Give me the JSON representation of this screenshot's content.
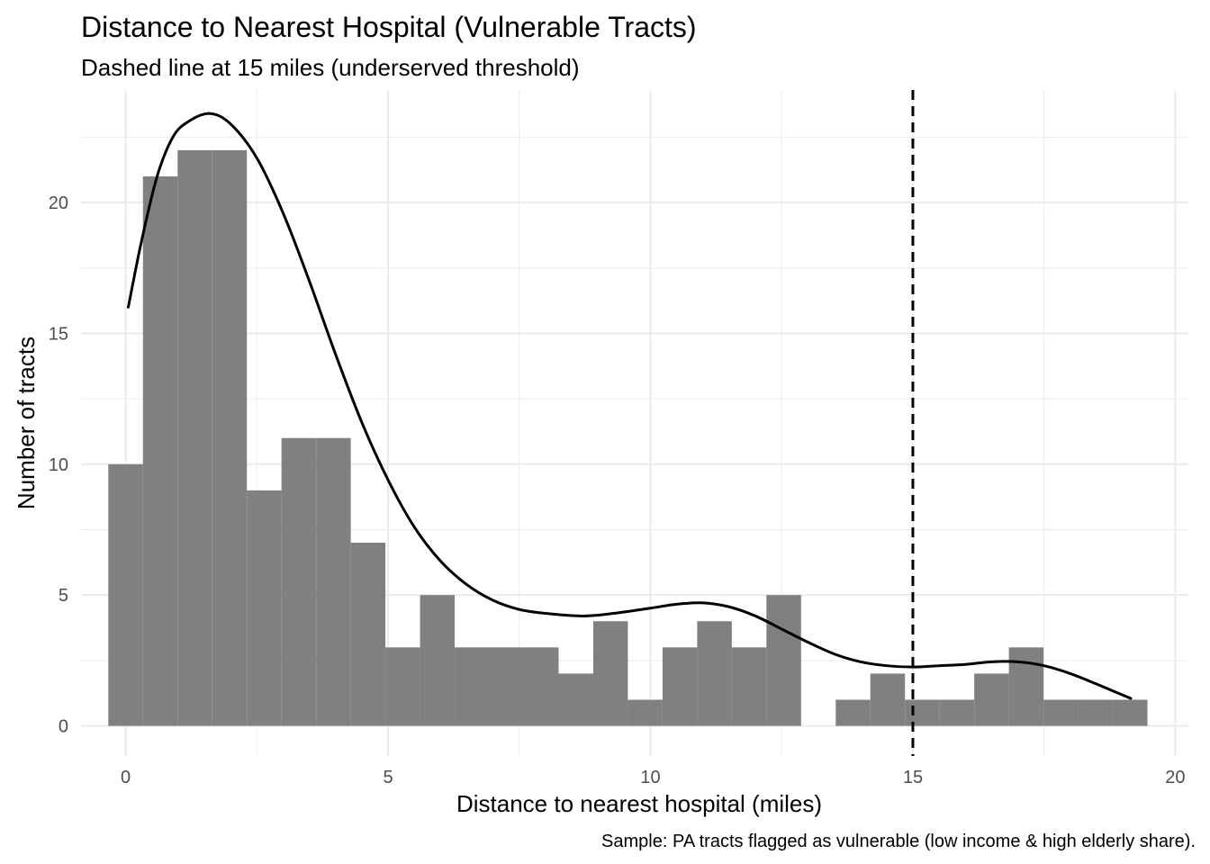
{
  "chart_data": {
    "type": "bar",
    "title": "Distance to Nearest Hospital (Vulnerable Tracts)",
    "subtitle": "Dashed line at 15 miles (underserved threshold)",
    "xlabel": "Distance to nearest hospital (miles)",
    "ylabel": "Number of tracts",
    "caption": "Sample: PA tracts flagged as vulnerable (low income & high elderly share).",
    "xlim": [
      -0.85,
      20.25
    ],
    "ylim": [
      -1.15,
      24.3
    ],
    "x_ticks": [
      0,
      5,
      10,
      15,
      20
    ],
    "y_ticks": [
      0,
      5,
      10,
      15,
      20
    ],
    "grid": true,
    "bin_width": 0.66,
    "bins": [
      {
        "start": -0.33,
        "end": 0.33,
        "count": 10
      },
      {
        "start": 0.33,
        "end": 0.99,
        "count": 21
      },
      {
        "start": 0.99,
        "end": 1.65,
        "count": 22
      },
      {
        "start": 1.65,
        "end": 2.31,
        "count": 22
      },
      {
        "start": 2.31,
        "end": 2.97,
        "count": 9
      },
      {
        "start": 2.97,
        "end": 3.63,
        "count": 11
      },
      {
        "start": 3.63,
        "end": 4.29,
        "count": 11
      },
      {
        "start": 4.29,
        "end": 4.95,
        "count": 7
      },
      {
        "start": 4.95,
        "end": 5.61,
        "count": 3
      },
      {
        "start": 5.61,
        "end": 6.27,
        "count": 5
      },
      {
        "start": 6.27,
        "end": 6.93,
        "count": 3
      },
      {
        "start": 6.93,
        "end": 7.59,
        "count": 3
      },
      {
        "start": 7.59,
        "end": 8.25,
        "count": 3
      },
      {
        "start": 8.25,
        "end": 8.91,
        "count": 2
      },
      {
        "start": 8.91,
        "end": 9.57,
        "count": 4
      },
      {
        "start": 9.57,
        "end": 10.23,
        "count": 1
      },
      {
        "start": 10.23,
        "end": 10.89,
        "count": 3
      },
      {
        "start": 10.89,
        "end": 11.55,
        "count": 4
      },
      {
        "start": 11.55,
        "end": 12.21,
        "count": 3
      },
      {
        "start": 12.21,
        "end": 12.87,
        "count": 5
      },
      {
        "start": 12.87,
        "end": 13.53,
        "count": 0
      },
      {
        "start": 13.53,
        "end": 14.19,
        "count": 1
      },
      {
        "start": 14.19,
        "end": 14.85,
        "count": 2
      },
      {
        "start": 14.85,
        "end": 15.51,
        "count": 1
      },
      {
        "start": 15.51,
        "end": 16.17,
        "count": 1
      },
      {
        "start": 16.17,
        "end": 16.83,
        "count": 2
      },
      {
        "start": 16.83,
        "end": 17.49,
        "count": 3
      },
      {
        "start": 17.49,
        "end": 18.15,
        "count": 1
      },
      {
        "start": 18.15,
        "end": 18.81,
        "count": 1
      },
      {
        "start": 18.81,
        "end": 19.47,
        "count": 1
      }
    ],
    "density_curve": [
      {
        "x": 0.05,
        "y": 16.0
      },
      {
        "x": 0.3,
        "y": 18.5
      },
      {
        "x": 0.6,
        "y": 21.0
      },
      {
        "x": 0.9,
        "y": 22.5
      },
      {
        "x": 1.2,
        "y": 23.1
      },
      {
        "x": 1.6,
        "y": 23.4
      },
      {
        "x": 2.0,
        "y": 23.0
      },
      {
        "x": 2.5,
        "y": 21.7
      },
      {
        "x": 3.0,
        "y": 19.6
      },
      {
        "x": 3.5,
        "y": 17.0
      },
      {
        "x": 4.0,
        "y": 14.2
      },
      {
        "x": 4.5,
        "y": 11.6
      },
      {
        "x": 5.0,
        "y": 9.4
      },
      {
        "x": 5.5,
        "y": 7.6
      },
      {
        "x": 6.0,
        "y": 6.3
      },
      {
        "x": 6.5,
        "y": 5.4
      },
      {
        "x": 7.0,
        "y": 4.8
      },
      {
        "x": 7.5,
        "y": 4.45
      },
      {
        "x": 8.0,
        "y": 4.3
      },
      {
        "x": 8.7,
        "y": 4.2
      },
      {
        "x": 9.3,
        "y": 4.3
      },
      {
        "x": 10.0,
        "y": 4.5
      },
      {
        "x": 10.5,
        "y": 4.65
      },
      {
        "x": 11.0,
        "y": 4.7
      },
      {
        "x": 11.5,
        "y": 4.55
      },
      {
        "x": 12.0,
        "y": 4.2
      },
      {
        "x": 12.5,
        "y": 3.7
      },
      {
        "x": 13.0,
        "y": 3.2
      },
      {
        "x": 13.5,
        "y": 2.75
      },
      {
        "x": 14.0,
        "y": 2.45
      },
      {
        "x": 14.5,
        "y": 2.3
      },
      {
        "x": 15.0,
        "y": 2.25
      },
      {
        "x": 15.5,
        "y": 2.3
      },
      {
        "x": 16.0,
        "y": 2.35
      },
      {
        "x": 16.5,
        "y": 2.45
      },
      {
        "x": 17.0,
        "y": 2.45
      },
      {
        "x": 17.5,
        "y": 2.3
      },
      {
        "x": 18.0,
        "y": 2.0
      },
      {
        "x": 18.5,
        "y": 1.6
      },
      {
        "x": 19.15,
        "y": 1.05
      }
    ],
    "threshold": {
      "x": 15,
      "style": "dashed"
    },
    "colors": {
      "bar_fill": "#808080",
      "density_line": "#000000",
      "threshold_line": "#000000",
      "grid": "#ebebeb"
    }
  }
}
